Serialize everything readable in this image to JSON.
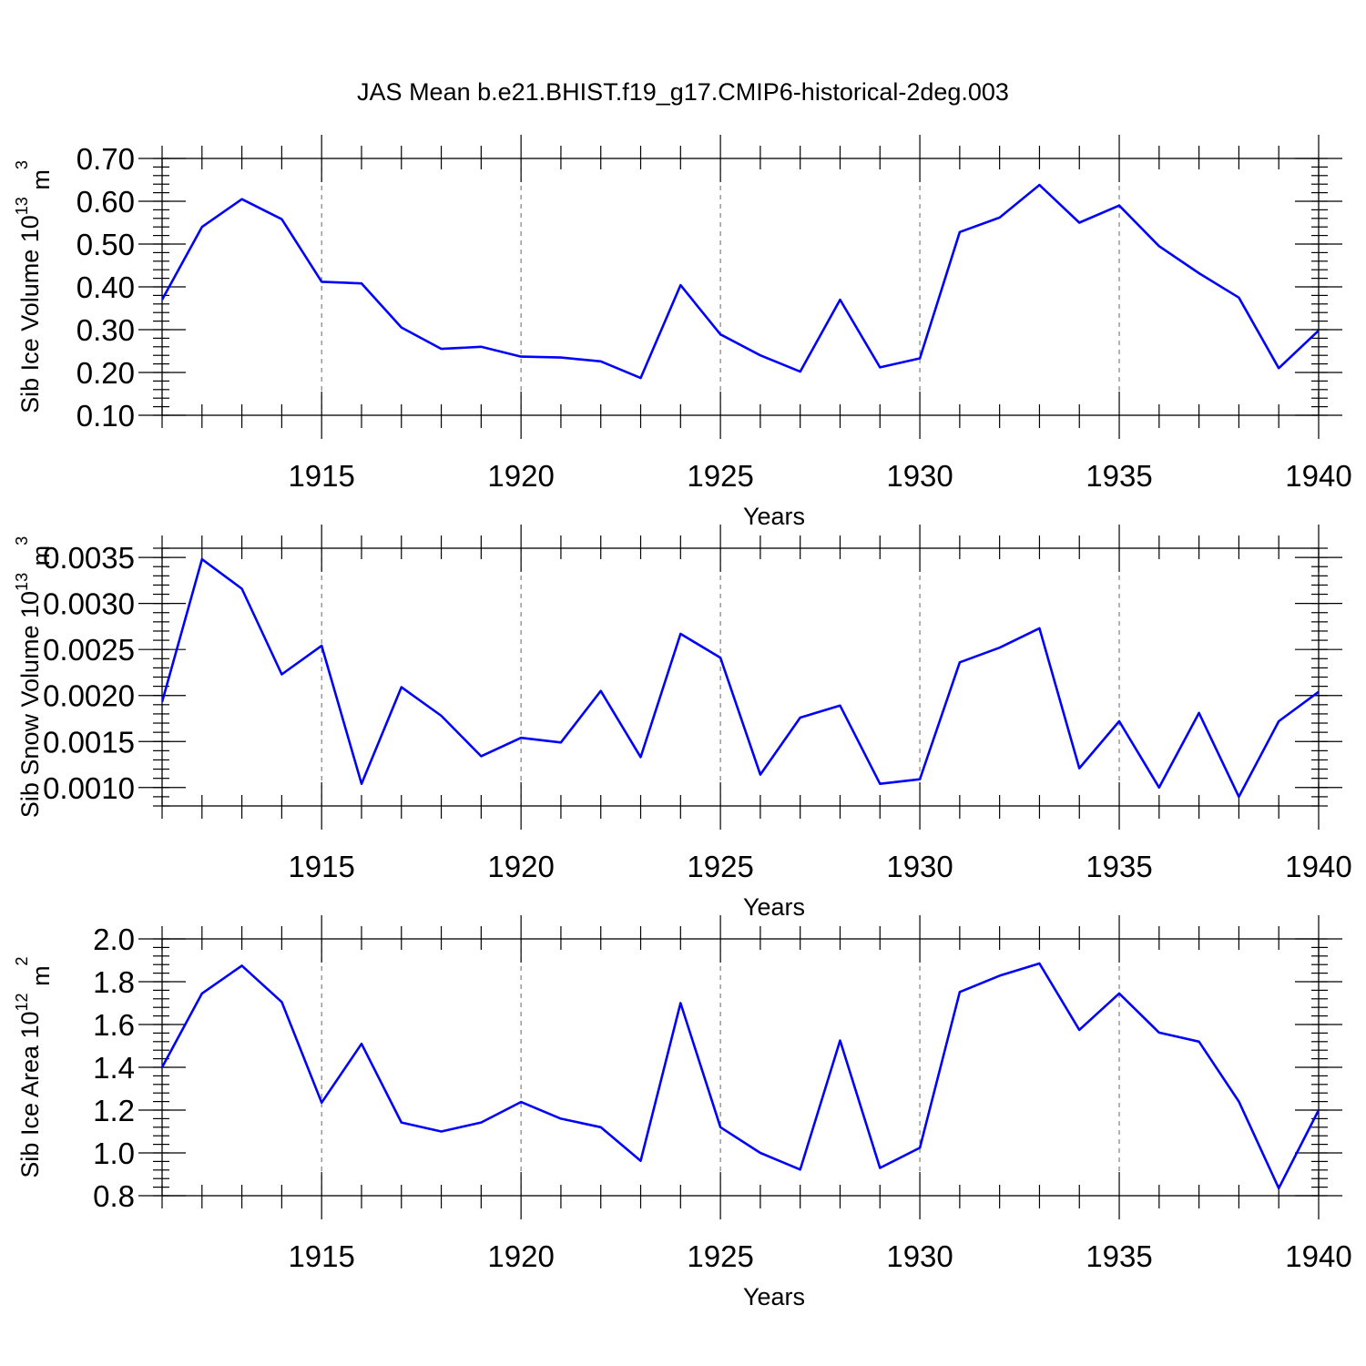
{
  "chart_data": {
    "title": "JAS Mean b.e21.BHIST.f19_g17.CMIP6-historical-2deg.003",
    "type": "line",
    "panels": [
      {
        "name": "ice-volume",
        "ylabel": "Sib Ice Volume 10",
        "ylabel_exp": "13",
        "ylabel_unit": " m",
        "ylabel_unit_exp": "3",
        "xlabel": "Years",
        "xlim": [
          1911,
          1940
        ],
        "ylim": [
          0.1,
          0.7
        ],
        "yticks": [
          0.1,
          0.2,
          0.3,
          0.4,
          0.5,
          0.6,
          0.7
        ],
        "ytick_labels": [
          "0.10",
          "0.20",
          "0.30",
          "0.40",
          "0.50",
          "0.60",
          "0.70"
        ],
        "yminor_step": 0.02,
        "xticks": [
          1915,
          1920,
          1925,
          1930,
          1935,
          1940
        ],
        "xtick_labels": [
          "1915",
          "1920",
          "1925",
          "1930",
          "1935",
          "1940"
        ],
        "series": [
          {
            "name": "Sib Ice Volume",
            "color": "#0000ff",
            "x": [
              1911,
              1912,
              1913,
              1914,
              1915,
              1916,
              1917,
              1918,
              1919,
              1920,
              1921,
              1922,
              1923,
              1924,
              1925,
              1926,
              1927,
              1928,
              1929,
              1930,
              1931,
              1932,
              1933,
              1934,
              1935,
              1936,
              1937,
              1938,
              1939,
              1940
            ],
            "values": [
              0.37,
              0.54,
              0.605,
              0.558,
              0.412,
              0.408,
              0.305,
              0.255,
              0.26,
              0.237,
              0.235,
              0.226,
              0.187,
              0.404,
              0.289,
              0.24,
              0.202,
              0.37,
              0.212,
              0.233,
              0.528,
              0.562,
              0.638,
              0.55,
              0.59,
              0.495,
              0.432,
              0.375,
              0.21,
              0.298
            ]
          }
        ]
      },
      {
        "name": "snow-volume",
        "ylabel": "Sib Snow Volume 10",
        "ylabel_exp": "13",
        "ylabel_unit": " m",
        "ylabel_unit_exp": "3",
        "xlabel": "Years",
        "xlim": [
          1911,
          1940
        ],
        "ylim": [
          0.0008,
          0.0036
        ],
        "yticks": [
          0.001,
          0.0015,
          0.002,
          0.0025,
          0.003,
          0.0035
        ],
        "ytick_labels": [
          "0.0010",
          "0.0015",
          "0.0020",
          "0.0025",
          "0.0030",
          "0.0035"
        ],
        "yminor_step": 0.0001,
        "xticks": [
          1915,
          1920,
          1925,
          1930,
          1935,
          1940
        ],
        "xtick_labels": [
          "1915",
          "1920",
          "1925",
          "1930",
          "1935",
          "1940"
        ],
        "series": [
          {
            "name": "Sib Snow Volume",
            "color": "#0000ff",
            "x": [
              1911,
              1912,
              1913,
              1914,
              1915,
              1916,
              1917,
              1918,
              1919,
              1920,
              1921,
              1922,
              1923,
              1924,
              1925,
              1926,
              1927,
              1928,
              1929,
              1930,
              1931,
              1932,
              1933,
              1934,
              1935,
              1936,
              1937,
              1938,
              1939,
              1940
            ],
            "values": [
              0.00193,
              0.00348,
              0.00316,
              0.00223,
              0.00254,
              0.00104,
              0.00209,
              0.00178,
              0.00134,
              0.00154,
              0.00149,
              0.00205,
              0.00133,
              0.00267,
              0.00241,
              0.00114,
              0.00176,
              0.00189,
              0.00104,
              0.00109,
              0.00236,
              0.00252,
              0.00273,
              0.00121,
              0.00172,
              0.001,
              0.00181,
              0.0009,
              0.00172,
              0.00204
            ]
          }
        ]
      },
      {
        "name": "ice-area",
        "ylabel": "Sib Ice Area 10",
        "ylabel_exp": "12",
        "ylabel_unit": " m",
        "ylabel_unit_exp": "2",
        "xlabel": "Years",
        "xlim": [
          1911,
          1940
        ],
        "ylim": [
          0.8,
          2.0
        ],
        "yticks": [
          0.8,
          1.0,
          1.2,
          1.4,
          1.6,
          1.8,
          2.0
        ],
        "ytick_labels": [
          "0.8",
          "1.0",
          "1.2",
          "1.4",
          "1.6",
          "1.8",
          "2.0"
        ],
        "yminor_step": 0.04,
        "xticks": [
          1915,
          1920,
          1925,
          1930,
          1935,
          1940
        ],
        "xtick_labels": [
          "1915",
          "1920",
          "1925",
          "1930",
          "1935",
          "1940"
        ],
        "series": [
          {
            "name": "Sib Ice Area",
            "color": "#0000ff",
            "x": [
              1911,
              1912,
              1913,
              1914,
              1915,
              1916,
              1917,
              1918,
              1919,
              1920,
              1921,
              1922,
              1923,
              1924,
              1925,
              1926,
              1927,
              1928,
              1929,
              1930,
              1931,
              1932,
              1933,
              1934,
              1935,
              1936,
              1937,
              1938,
              1939,
              1940
            ],
            "values": [
              1.4,
              1.745,
              1.875,
              1.705,
              1.235,
              1.51,
              1.142,
              1.1,
              1.142,
              1.238,
              1.16,
              1.12,
              0.963,
              1.7,
              1.12,
              1.0,
              0.922,
              1.525,
              0.93,
              1.024,
              1.752,
              1.828,
              1.885,
              1.575,
              1.745,
              1.562,
              1.52,
              1.24,
              0.835,
              1.2
            ]
          }
        ]
      }
    ]
  }
}
